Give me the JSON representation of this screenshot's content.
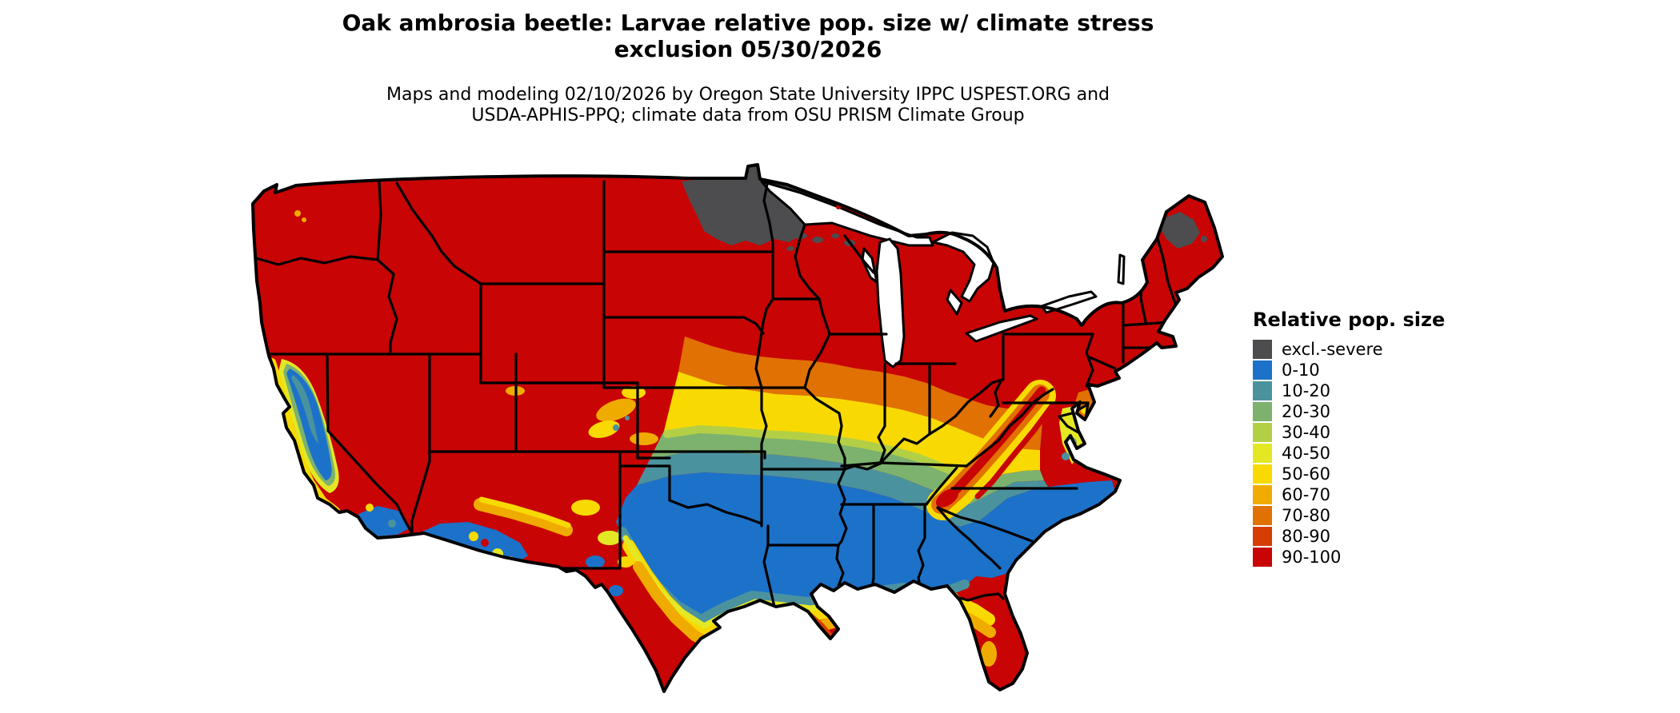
{
  "title": {
    "line1": "Oak ambrosia beetle: Larvae relative pop. size w/ climate stress",
    "line2": "exclusion 05/30/2026"
  },
  "subtitle": {
    "line1": "Maps and modeling 02/10/2026 by Oregon State University IPPC USPEST.ORG and",
    "line2": "USDA-APHIS-PPQ; climate data from OSU PRISM Climate Group"
  },
  "legend": {
    "title": "Relative pop. size",
    "items": [
      {
        "label": "excl.-severe",
        "color": "#4d4d4f"
      },
      {
        "label": "0-10",
        "color": "#1c72c9"
      },
      {
        "label": "10-20",
        "color": "#4b929f"
      },
      {
        "label": "20-30",
        "color": "#7cb26e"
      },
      {
        "label": "30-40",
        "color": "#b3cf45"
      },
      {
        "label": "40-50",
        "color": "#e4e824"
      },
      {
        "label": "50-60",
        "color": "#f8da02"
      },
      {
        "label": "60-70",
        "color": "#f0ab00"
      },
      {
        "label": "70-80",
        "color": "#e17102"
      },
      {
        "label": "80-90",
        "color": "#d63d03"
      },
      {
        "label": "90-100",
        "color": "#c80404"
      }
    ]
  },
  "map": {
    "region": "Continental United States",
    "colors": {
      "state_border": "#000000",
      "water": "#ffffff"
    }
  }
}
